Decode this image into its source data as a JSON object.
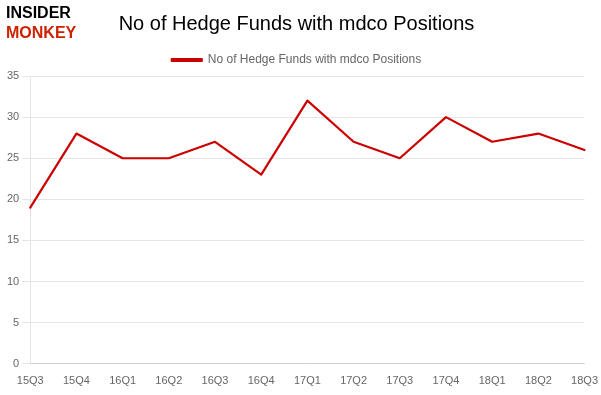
{
  "chart_data": {
    "type": "line",
    "title": "No of Hedge Funds with mdco Positions",
    "categories": [
      "15Q3",
      "15Q4",
      "16Q1",
      "16Q2",
      "16Q3",
      "16Q4",
      "17Q1",
      "17Q2",
      "17Q3",
      "17Q4",
      "18Q1",
      "18Q2",
      "18Q3"
    ],
    "series": [
      {
        "name": "No of Hedge Funds with mdco Positions",
        "color": "#cc0000",
        "values": [
          19,
          28,
          25,
          25,
          27,
          23,
          32,
          27,
          25,
          30,
          27,
          28,
          26
        ]
      }
    ],
    "ylim": [
      0,
      35
    ],
    "yticks": [
      0,
      5,
      10,
      15,
      20,
      25,
      30,
      35
    ],
    "grid": true,
    "legend": "top",
    "annotations": [
      {
        "text": "INSIDER",
        "color": "#000000"
      },
      {
        "text": "MONKEY",
        "color": "#cc2200"
      }
    ]
  }
}
